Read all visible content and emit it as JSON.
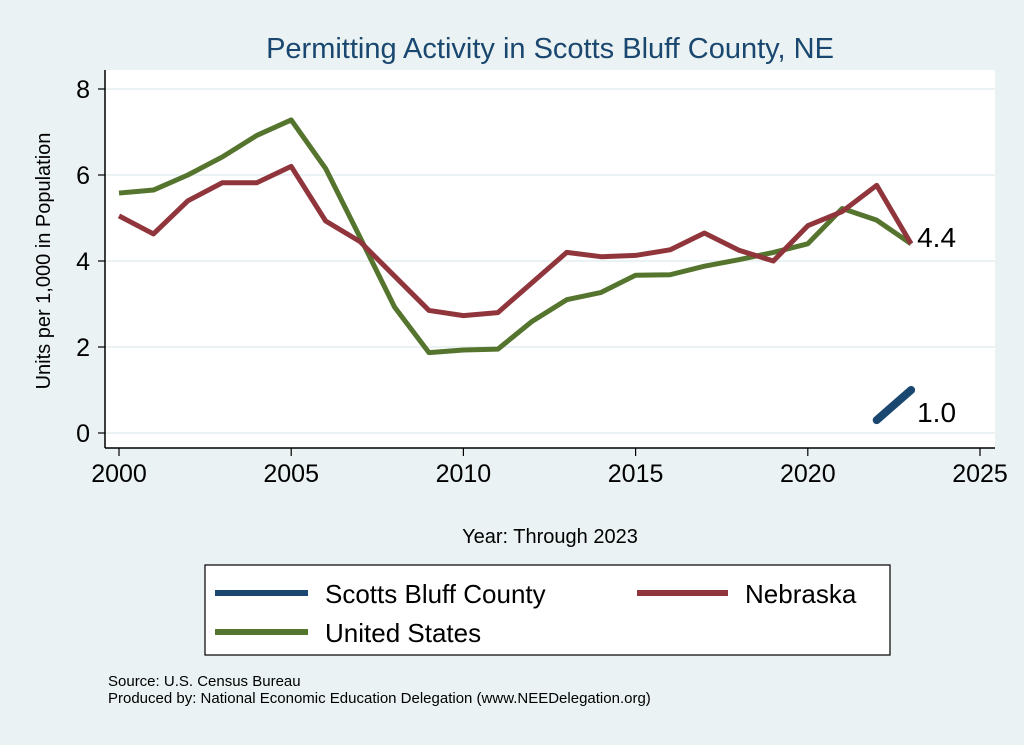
{
  "chart_data": {
    "type": "line",
    "title": "Permitting Activity in Scotts Bluff County, NE",
    "xlabel": "Year: Through 2023",
    "ylabel": "Units per 1,000 in Population",
    "xlim": [
      2000,
      2025
    ],
    "ylim": [
      0,
      8
    ],
    "xticks": [
      2000,
      2005,
      2010,
      2015,
      2020,
      2025
    ],
    "yticks": [
      0,
      2,
      4,
      6,
      8
    ],
    "grid": true,
    "legend_position": "bottom",
    "series": [
      {
        "name": "Scotts Bluff County",
        "color": "#1a476f",
        "x": [
          2022,
          2023
        ],
        "values": [
          0.3,
          1.0
        ],
        "end_label": "1.0"
      },
      {
        "name": "Nebraska",
        "color": "#90353b",
        "x": [
          2000,
          2001,
          2002,
          2003,
          2004,
          2005,
          2006,
          2007,
          2008,
          2009,
          2010,
          2011,
          2012,
          2013,
          2014,
          2015,
          2016,
          2017,
          2018,
          2019,
          2020,
          2021,
          2022,
          2023
        ],
        "values": [
          5.05,
          4.63,
          5.4,
          5.82,
          5.82,
          6.2,
          4.93,
          4.45,
          3.65,
          2.85,
          2.73,
          2.8,
          3.5,
          4.2,
          4.1,
          4.13,
          4.26,
          4.65,
          4.25,
          4.0,
          4.82,
          5.15,
          5.76,
          4.4
        ],
        "end_label": "4.4"
      },
      {
        "name": "United States",
        "color": "#55752f",
        "x": [
          2000,
          2001,
          2002,
          2003,
          2004,
          2005,
          2006,
          2007,
          2008,
          2009,
          2010,
          2011,
          2012,
          2013,
          2014,
          2015,
          2016,
          2017,
          2018,
          2019,
          2020,
          2021,
          2022,
          2023
        ],
        "values": [
          5.58,
          5.65,
          6.0,
          6.42,
          6.92,
          7.28,
          6.15,
          4.55,
          2.93,
          1.87,
          1.93,
          1.95,
          2.6,
          3.1,
          3.27,
          3.67,
          3.68,
          3.88,
          4.03,
          4.2,
          4.4,
          5.22,
          4.95,
          4.4
        ]
      }
    ]
  },
  "notes": {
    "source": "Source: U.S. Census Bureau",
    "produced_by": "Produced by: National Economic Education Delegation (www.NEEDelegation.org)"
  }
}
